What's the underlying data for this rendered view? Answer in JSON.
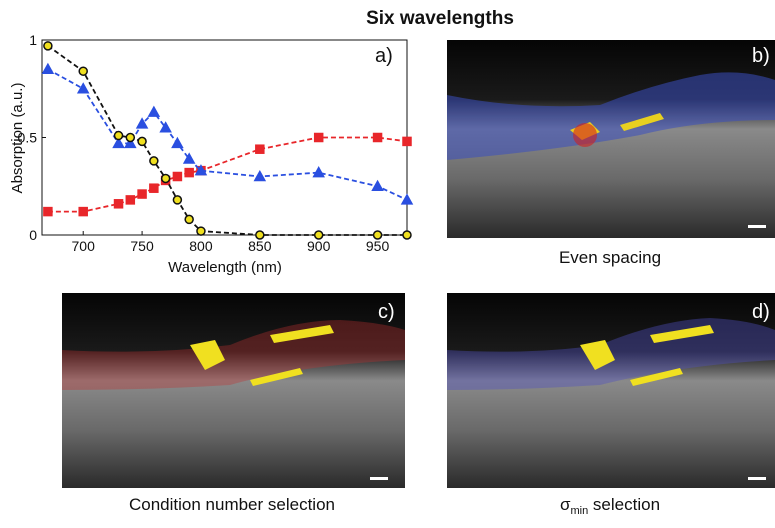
{
  "title": "Six wavelengths",
  "chart_data": {
    "type": "line",
    "annotation": "a)",
    "xlabel": "Wavelength (nm)",
    "ylabel": "Absorption (a.u.)",
    "x": [
      670,
      700,
      730,
      740,
      750,
      760,
      770,
      780,
      790,
      800,
      850,
      900,
      950,
      975
    ],
    "xlim": [
      665,
      975
    ],
    "xticks": [
      700,
      750,
      800,
      850,
      900,
      950
    ],
    "ylim": [
      0,
      1
    ],
    "yticks": [
      0,
      0.5,
      1
    ],
    "series": [
      {
        "color": "#e8262a",
        "marker": "square",
        "values": [
          0.12,
          0.12,
          0.16,
          0.18,
          0.21,
          0.24,
          0.28,
          0.3,
          0.32,
          0.33,
          0.44,
          0.5,
          0.5,
          0.48
        ]
      },
      {
        "color": "#2a4fe0",
        "marker": "triangle",
        "values": [
          0.85,
          0.75,
          0.47,
          0.47,
          0.57,
          0.63,
          0.55,
          0.47,
          0.39,
          0.33,
          0.3,
          0.32,
          0.25,
          0.18
        ]
      },
      {
        "color": "#111111",
        "marker": "circle",
        "fill": "#f0e020",
        "values": [
          0.97,
          0.84,
          0.51,
          0.5,
          0.48,
          0.38,
          0.29,
          0.18,
          0.08,
          0.02,
          0,
          0,
          0,
          0
        ]
      }
    ]
  },
  "panels": [
    {
      "label": "b)",
      "caption": "Even spacing"
    },
    {
      "label": "c)",
      "caption": "Condition number selection"
    },
    {
      "label": "d)",
      "caption": "σ",
      "caption_sub": "min",
      "caption_rest": " selection"
    }
  ]
}
